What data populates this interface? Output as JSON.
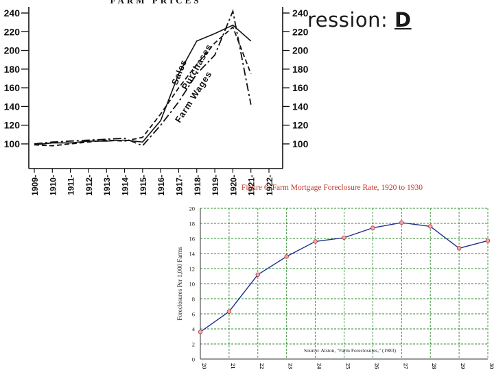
{
  "slide": {
    "title_visible": "ression:",
    "title_emphasis": "D"
  },
  "chart_data": [
    {
      "type": "line",
      "title": "FARM PRICES",
      "x": [
        "1909",
        "1910",
        "1911",
        "1912",
        "1913",
        "1914",
        "1915",
        "1916",
        "1917",
        "1918",
        "1919",
        "1920",
        "1921",
        "1922"
      ],
      "y_left_ticks": [
        "240",
        "220",
        "200",
        "180",
        "160",
        "140",
        "120",
        "100"
      ],
      "y_right_ticks": [
        "240",
        "220",
        "200",
        "180",
        "160",
        "140",
        "120",
        "100"
      ],
      "ylim": [
        80,
        245
      ],
      "series": [
        {
          "name": "Sales",
          "values": [
            99,
            101,
            101,
            103,
            103,
            104,
            102,
            125,
            175,
            210,
            218,
            227,
            210,
            null
          ]
        },
        {
          "name": "Purchases",
          "values": [
            99,
            98,
            100,
            102,
            104,
            103,
            107,
            132,
            160,
            185,
            208,
            225,
            175,
            null
          ]
        },
        {
          "name": "Farm Wages",
          "values": [
            100,
            102,
            103,
            104,
            105,
            106,
            98,
            120,
            145,
            175,
            195,
            242,
            142,
            null
          ]
        }
      ]
    },
    {
      "type": "line",
      "title": "Figure 6: Farm Mortgage Foreclosure Rate, 1920 to 1930",
      "ylabel": "Foreclosures Per 1,000 Farms",
      "x": [
        "20",
        "21",
        "22",
        "23",
        "24",
        "25",
        "26",
        "27",
        "28",
        "29",
        "30"
      ],
      "y_ticks": [
        "20",
        "18",
        "16",
        "14",
        "12",
        "10",
        "8",
        "6",
        "4",
        "2",
        "0"
      ],
      "ylim": [
        0,
        20
      ],
      "series": [
        {
          "name": "",
          "values": [
            3.6,
            6.3,
            11.2,
            13.6,
            15.6,
            16.1,
            17.4,
            18.1,
            17.6,
            14.7,
            15.7
          ]
        }
      ],
      "source": "Source: Alston, \"Farm Foreclosures,\" (1983)",
      "grid": true
    }
  ]
}
